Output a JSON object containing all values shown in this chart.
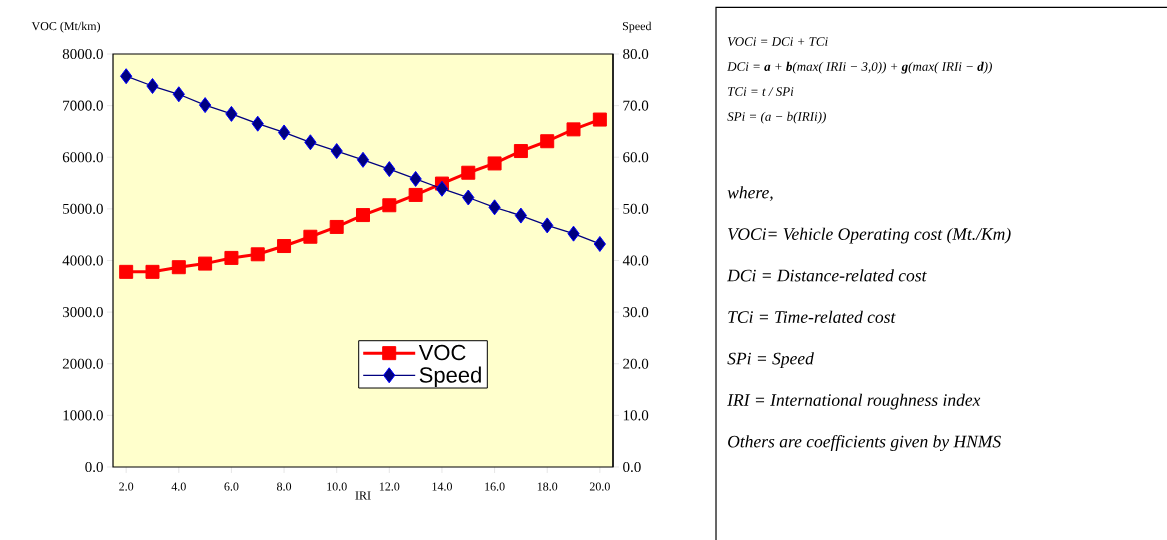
{
  "chart_data": [
    {
      "type": "line",
      "xlabel": "IRI",
      "ylabel": "VOC (Mt/km)",
      "y2label": "Speed",
      "legend": "bottom",
      "x": [
        2,
        3,
        4,
        5,
        6,
        7,
        8,
        9,
        10,
        11,
        12,
        13,
        14,
        15,
        16,
        17,
        18,
        19,
        20
      ],
      "xlim": [
        1.5,
        20.5
      ],
      "xticks": [
        {
          "value": 2,
          "label": "2.0"
        },
        {
          "value": 4,
          "label": "4.0"
        },
        {
          "value": 6,
          "label": "6.0"
        },
        {
          "value": 8,
          "label": "8.0"
        },
        {
          "value": 10,
          "label": "10.0"
        },
        {
          "value": 12,
          "label": "12.0"
        },
        {
          "value": 14,
          "label": "14.0"
        },
        {
          "value": 16,
          "label": "16.0"
        },
        {
          "value": 18,
          "label": "18.0"
        },
        {
          "value": 20,
          "label": "20.0"
        }
      ],
      "ylim": [
        0,
        8000
      ],
      "yticks": [
        {
          "value": 0,
          "label": "0.0"
        },
        {
          "value": 1000,
          "label": "1000.0"
        },
        {
          "value": 2000,
          "label": "2000.0"
        },
        {
          "value": 3000,
          "label": "3000.0"
        },
        {
          "value": 4000,
          "label": "4000.0"
        },
        {
          "value": 5000,
          "label": "5000.0"
        },
        {
          "value": 6000,
          "label": "6000.0"
        },
        {
          "value": 7000,
          "label": "7000.0"
        },
        {
          "value": 8000,
          "label": "8000.0"
        }
      ],
      "y2lim": [
        0,
        80
      ],
      "y2ticks": [
        {
          "value": 0,
          "label": "0.0"
        },
        {
          "value": 10,
          "label": "10.0"
        },
        {
          "value": 20,
          "label": "20.0"
        },
        {
          "value": 30,
          "label": "30.0"
        },
        {
          "value": 40,
          "label": "40.0"
        },
        {
          "value": 50,
          "label": "50.0"
        },
        {
          "value": 60,
          "label": "60.0"
        },
        {
          "value": 70,
          "label": "70.0"
        },
        {
          "value": 80,
          "label": "80.0"
        }
      ],
      "series": [
        {
          "name": "VOC",
          "color": "#ff0000",
          "marker": "square",
          "values": [
            3780,
            3780,
            3870,
            3940,
            4050,
            4120,
            4280,
            4460,
            4650,
            4880,
            5070,
            5270,
            5490,
            5700,
            5880,
            6120,
            6310,
            6540,
            6730
          ]
        },
        {
          "name": "Speed",
          "color": "#000080",
          "marker": "diamond",
          "axis": "y2",
          "values": [
            75.7,
            73.8,
            72.2,
            70.1,
            68.4,
            66.5,
            64.8,
            62.9,
            61.2,
            59.5,
            57.7,
            55.8,
            53.9,
            52.2,
            50.3,
            48.7,
            46.8,
            45.2,
            43.2
          ]
        }
      ]
    },
    {
      "type": "other",
      "annotations": [
        "VOCi = DCi + TCi",
        "DCi = **a** + **b**(max( IRIi − 3,0)) + **g**(max( IRIi − **d**))",
        "TCi = t / SPi",
        "SPi = (a − b(IRIi))",
        "where,",
        "VOCi= Vehicle Operating cost (Mt./Km)",
        "DCi = Distance-related cost",
        "TCi = Time-related cost",
        "SPi = Speed",
        "IRI = International roughness index",
        "Others are coefficients given by HNMS"
      ]
    }
  ]
}
